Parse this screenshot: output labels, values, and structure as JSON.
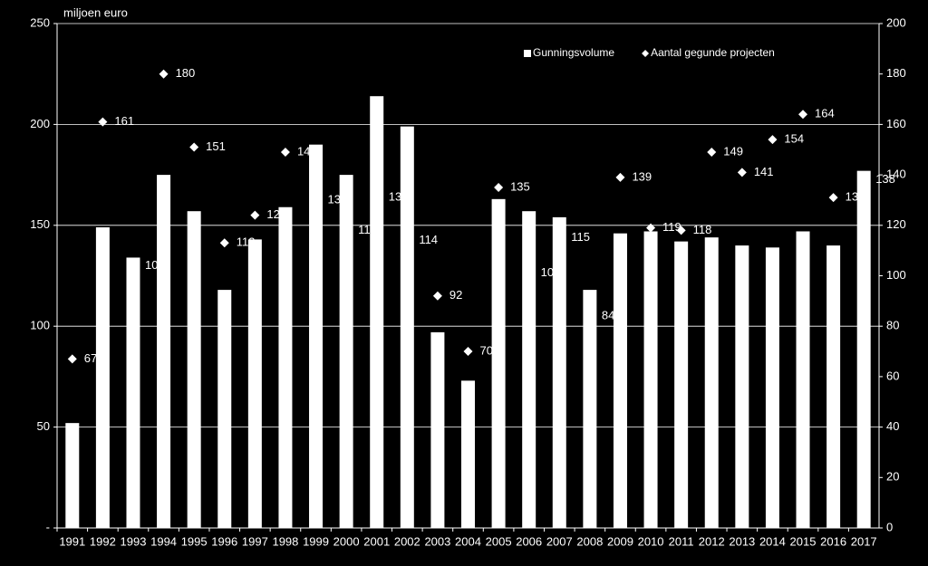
{
  "chart_data": {
    "type": "bar",
    "y_label": "miljoen euro",
    "categories": [
      "1991",
      "1992",
      "1993",
      "1994",
      "1995",
      "1996",
      "1997",
      "1998",
      "1999",
      "2000",
      "2001",
      "2002",
      "2003",
      "2004",
      "2005",
      "2006",
      "2007",
      "2008",
      "2009",
      "2010",
      "2011",
      "2012",
      "2013",
      "2014",
      "2015",
      "2016",
      "2017"
    ],
    "series": [
      {
        "name": "Gunningsvolume",
        "color": "#ffffff",
        "values": [
          52,
          149,
          134,
          175,
          157,
          118,
          143,
          159,
          190,
          175,
          214,
          199,
          97,
          73,
          163,
          157,
          154,
          118,
          146,
          147,
          142,
          144,
          140,
          139,
          147,
          140,
          177
        ]
      },
      {
        "name": "Aantal gegunde projecten",
        "color": "#ffffff",
        "axis": "y2",
        "values": [
          67,
          161,
          104,
          180,
          151,
          113,
          124,
          149,
          130,
          118,
          131,
          114,
          92,
          70,
          135,
          101,
          115,
          84,
          139,
          119,
          118,
          149,
          141,
          154,
          164,
          131,
          138
        ]
      }
    ],
    "ylim": [
      0,
      250
    ],
    "yticks": [
      {
        "value": 0,
        "label": "-"
      },
      50,
      100,
      150,
      200,
      250
    ],
    "y2lim": [
      0,
      200
    ],
    "y2ticks": [
      0,
      20,
      40,
      60,
      80,
      100,
      120,
      140,
      160,
      180,
      200
    ],
    "grid": true,
    "legend": "top-right"
  }
}
